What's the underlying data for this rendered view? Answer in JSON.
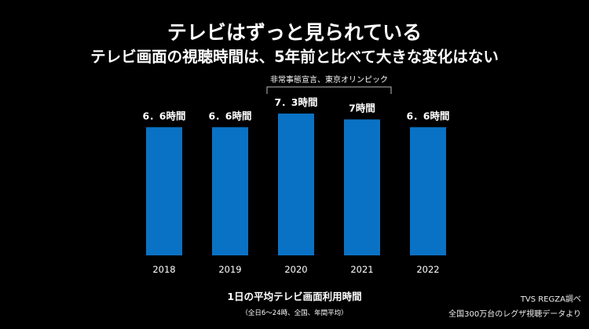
{
  "header": {
    "title": "テレビはずっと見られている",
    "subtitle": "テレビ画面の視聴時間は、5年前と比べて大きな変化はない"
  },
  "source": {
    "line1": "TVS REGZA調べ",
    "line2": "全国300万台のレグザ視聴データより"
  },
  "colors": {
    "bar": "#0a72c4",
    "background": "#000000",
    "text": "#ffffff"
  },
  "chart_data": {
    "type": "bar",
    "categories": [
      "2018",
      "2019",
      "2020",
      "2021",
      "2022"
    ],
    "values": [
      6.6,
      6.6,
      7.3,
      7.0,
      6.6
    ],
    "value_labels": [
      "6．6時間",
      "6．6時間",
      "7．3時間",
      "7時間",
      "6．6時間"
    ],
    "xlabel": "1日の平均テレビ画面利用時間",
    "xlabel_note": "（全日6～24時、全国、年間平均）",
    "ylabel": "",
    "unit": "時間",
    "ylim": [
      0,
      7.3
    ],
    "annotation": {
      "text": "非常事態宣言、東京オリンピック",
      "span": [
        "2020",
        "2021"
      ]
    }
  }
}
